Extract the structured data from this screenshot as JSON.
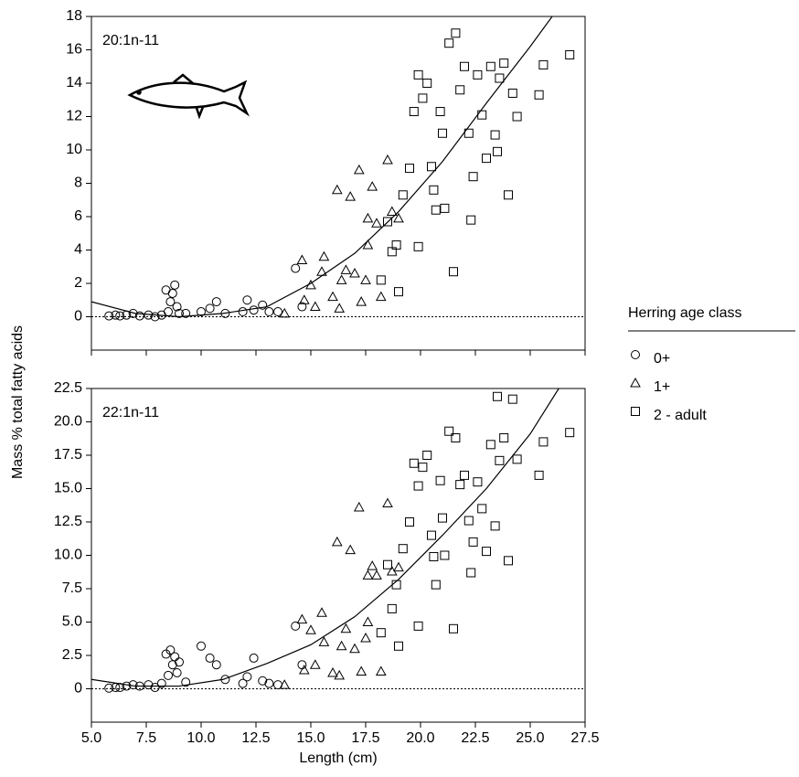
{
  "chart_data": [
    {
      "type": "scatter",
      "annotation": "20:1n-11",
      "y_label": "Mass % total fatty acids",
      "legend_title": "Herring age class",
      "legend": "right",
      "xlim": [
        5,
        27.5
      ],
      "xticks": [
        5,
        7.5,
        10,
        12.5,
        15,
        17.5,
        20,
        22.5,
        25,
        27.5
      ],
      "ylim": [
        -2,
        18
      ],
      "yticks": [
        0,
        2,
        4,
        6,
        8,
        10,
        12,
        14,
        16,
        18
      ],
      "series": [
        {
          "name": "0+",
          "marker": "circle",
          "color": "#000000",
          "x": [
            5.8,
            6.1,
            6.3,
            6.6,
            6.9,
            7.2,
            7.6,
            7.9,
            8.2,
            8.4,
            8.5,
            8.6,
            8.7,
            8.8,
            8.9,
            9.0,
            9.3,
            10.0,
            10.4,
            10.7,
            11.1,
            11.9,
            12.1,
            12.4,
            12.8,
            13.1,
            13.5,
            14.3,
            14.6
          ],
          "values": [
            0.05,
            0.1,
            0.05,
            0.1,
            0.2,
            0.05,
            0.1,
            0.0,
            0.1,
            1.6,
            0.3,
            0.9,
            1.4,
            1.9,
            0.6,
            0.2,
            0.2,
            0.3,
            0.5,
            0.9,
            0.2,
            0.3,
            1.0,
            0.4,
            0.7,
            0.3,
            0.3,
            2.9,
            0.6
          ]
        },
        {
          "name": "1+",
          "marker": "triangle",
          "color": "#000000",
          "x": [
            13.8,
            14.6,
            14.7,
            15.0,
            15.2,
            15.5,
            15.6,
            16.0,
            16.2,
            16.4,
            16.6,
            16.8,
            17.0,
            17.3,
            17.5,
            17.6,
            17.8,
            18.0,
            18.2,
            18.5,
            18.7,
            19.0,
            17.2,
            16.3,
            17.6
          ],
          "values": [
            0.2,
            3.4,
            1.0,
            1.9,
            0.6,
            2.7,
            3.6,
            1.2,
            7.6,
            2.2,
            2.8,
            7.2,
            2.6,
            0.9,
            2.2,
            4.3,
            7.8,
            5.6,
            1.2,
            9.4,
            6.3,
            5.9,
            8.8,
            0.5,
            5.9
          ]
        },
        {
          "name": "2 - adult",
          "marker": "square",
          "color": "#000000",
          "x": [
            18.2,
            18.5,
            18.7,
            18.9,
            19.0,
            19.2,
            19.5,
            19.7,
            19.9,
            20.1,
            20.3,
            20.5,
            20.7,
            20.9,
            21.1,
            21.3,
            21.5,
            21.6,
            21.8,
            22.0,
            22.2,
            22.4,
            22.6,
            22.8,
            23.0,
            23.2,
            23.4,
            23.6,
            23.8,
            24.0,
            24.2,
            24.4,
            25.4,
            25.6,
            26.8,
            19.9,
            20.6,
            21.0,
            22.3,
            23.5
          ],
          "values": [
            2.2,
            5.7,
            3.9,
            4.3,
            1.5,
            7.3,
            8.9,
            12.3,
            4.2,
            13.1,
            14.0,
            9.0,
            6.4,
            12.3,
            6.5,
            16.4,
            2.7,
            17.0,
            13.6,
            15.0,
            11.0,
            8.4,
            14.5,
            12.1,
            9.5,
            15.0,
            10.9,
            14.3,
            15.2,
            7.3,
            13.4,
            12.0,
            13.3,
            15.1,
            15.7,
            14.5,
            7.6,
            11.0,
            5.8,
            9.9
          ]
        }
      ],
      "fit": {
        "x": [
          5,
          7,
          9,
          11,
          13,
          15,
          17,
          19,
          21,
          23,
          25,
          26
        ],
        "values": [
          0.9,
          0.2,
          0.0,
          0.2,
          0.6,
          2.0,
          3.8,
          6.3,
          9.3,
          12.8,
          16.2,
          18
        ]
      }
    },
    {
      "type": "scatter",
      "annotation": "22:1n-11",
      "x_label": "Length (cm)",
      "xlim": [
        5,
        27.5
      ],
      "xticks": [
        {
          "value": 5,
          "label": "5.0"
        },
        7.5,
        {
          "value": 10,
          "label": "10.0"
        },
        12.5,
        {
          "value": 15,
          "label": "15.0"
        },
        17.5,
        {
          "value": 20,
          "label": "20.0"
        },
        22.5,
        {
          "value": 25,
          "label": "25.0"
        },
        27.5
      ],
      "ylim": [
        -2.5,
        22.5
      ],
      "yticks": [
        0,
        2.5,
        {
          "value": 5,
          "label": "5.0"
        },
        7.5,
        {
          "value": 10,
          "label": "10.0"
        },
        12.5,
        {
          "value": 15,
          "label": "15.0"
        },
        17.5,
        {
          "value": 20,
          "label": "20.0"
        },
        22.5
      ],
      "series": [
        {
          "marker": "circle",
          "color": "#000000",
          "x": [
            5.8,
            6.1,
            6.3,
            6.6,
            6.9,
            7.2,
            7.6,
            7.9,
            8.2,
            8.4,
            8.5,
            8.6,
            8.7,
            8.8,
            8.9,
            9.0,
            9.3,
            10.0,
            10.4,
            10.7,
            11.1,
            11.9,
            12.1,
            12.4,
            12.8,
            13.1,
            13.5,
            14.3,
            14.6
          ],
          "values": [
            0.05,
            0.1,
            0.1,
            0.2,
            0.3,
            0.2,
            0.3,
            0.1,
            0.4,
            2.6,
            1.0,
            2.9,
            1.8,
            2.4,
            1.2,
            2.0,
            0.5,
            3.2,
            2.3,
            1.8,
            0.7,
            0.4,
            0.9,
            2.3,
            0.6,
            0.4,
            0.3,
            4.7,
            1.8
          ]
        },
        {
          "marker": "triangle",
          "color": "#000000",
          "x": [
            13.8,
            14.6,
            14.7,
            15.0,
            15.2,
            15.5,
            15.6,
            16.0,
            16.2,
            16.4,
            16.6,
            16.8,
            17.0,
            17.3,
            17.5,
            17.6,
            17.8,
            18.0,
            18.2,
            18.5,
            18.7,
            19.0,
            17.2,
            16.3,
            17.6
          ],
          "values": [
            0.3,
            5.2,
            1.4,
            4.4,
            1.8,
            5.7,
            3.5,
            1.2,
            11.0,
            3.2,
            4.5,
            10.4,
            3.0,
            1.3,
            3.8,
            5.0,
            9.2,
            8.5,
            1.3,
            13.9,
            8.8,
            9.1,
            13.6,
            1.0,
            8.5
          ]
        },
        {
          "marker": "square",
          "color": "#000000",
          "x": [
            18.2,
            18.5,
            18.7,
            18.9,
            19.0,
            19.2,
            19.5,
            19.7,
            19.9,
            20.1,
            20.3,
            20.5,
            20.7,
            20.9,
            21.1,
            21.3,
            21.5,
            21.6,
            21.8,
            22.0,
            22.2,
            22.4,
            22.6,
            22.8,
            23.0,
            23.2,
            23.4,
            23.6,
            23.8,
            24.0,
            24.2,
            24.4,
            25.4,
            25.6,
            26.8,
            19.9,
            20.6,
            21.0,
            22.3,
            23.5
          ],
          "values": [
            4.2,
            9.3,
            6.0,
            7.8,
            3.2,
            10.5,
            12.5,
            16.9,
            4.7,
            16.6,
            17.5,
            11.5,
            7.8,
            15.6,
            10.0,
            19.3,
            4.5,
            18.8,
            15.3,
            16.0,
            12.6,
            11.0,
            15.5,
            13.5,
            10.3,
            18.3,
            12.2,
            17.1,
            18.8,
            9.6,
            21.7,
            17.2,
            16.0,
            18.5,
            19.2,
            15.2,
            9.9,
            12.8,
            8.7,
            21.9
          ]
        }
      ],
      "fit": {
        "x": [
          5,
          7,
          9,
          11,
          13,
          15,
          17,
          19,
          21,
          23,
          25,
          26.3
        ],
        "values": [
          0.7,
          0.2,
          0.2,
          0.7,
          1.9,
          3.3,
          5.4,
          8.2,
          11.5,
          15.0,
          19.1,
          22.5
        ]
      }
    }
  ]
}
